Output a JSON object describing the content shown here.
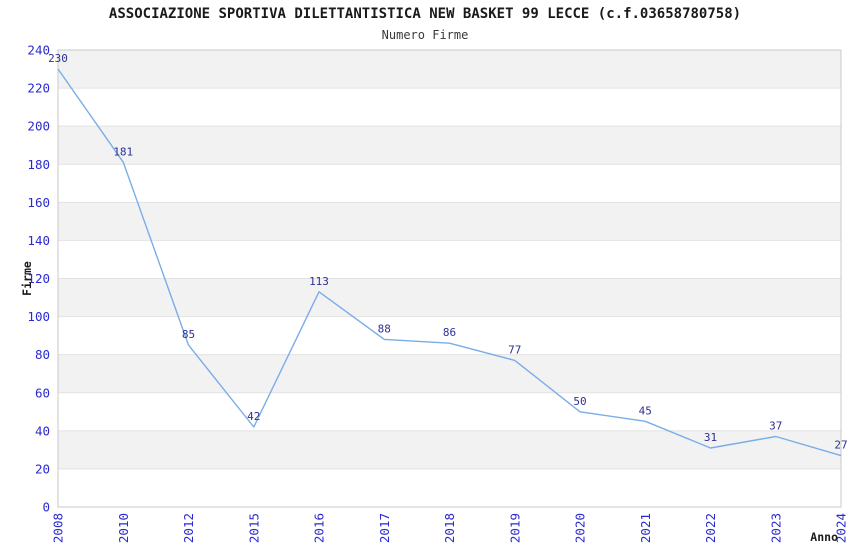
{
  "chart_data": {
    "type": "line",
    "title": "ASSOCIAZIONE SPORTIVA DILETTANTISTICA NEW BASKET 99 LECCE (c.f.03658780758)",
    "subtitle": "Numero Firme",
    "xlabel": "Anno",
    "ylabel": "Firme",
    "categories": [
      "2008",
      "2010",
      "2012",
      "2015",
      "2016",
      "2017",
      "2018",
      "2019",
      "2020",
      "2021",
      "2022",
      "2023",
      "2024"
    ],
    "values": [
      230,
      181,
      85,
      42,
      113,
      88,
      86,
      77,
      50,
      45,
      31,
      37,
      27
    ],
    "ylim": [
      0,
      240
    ],
    "ytick_step": 20,
    "grid": true,
    "bands": true,
    "legend": "none",
    "colors": {
      "line": "#7aade8",
      "data_label": "#2f2f96",
      "tick_label": "#2a2ad0",
      "band_fill": "#f2f2f2",
      "gridline": "#e2e2e2",
      "border": "#c9c9c9",
      "title": "#1a1a1a",
      "subtitle": "#3a3a3a",
      "axis_title": "#1a1a1a"
    }
  }
}
